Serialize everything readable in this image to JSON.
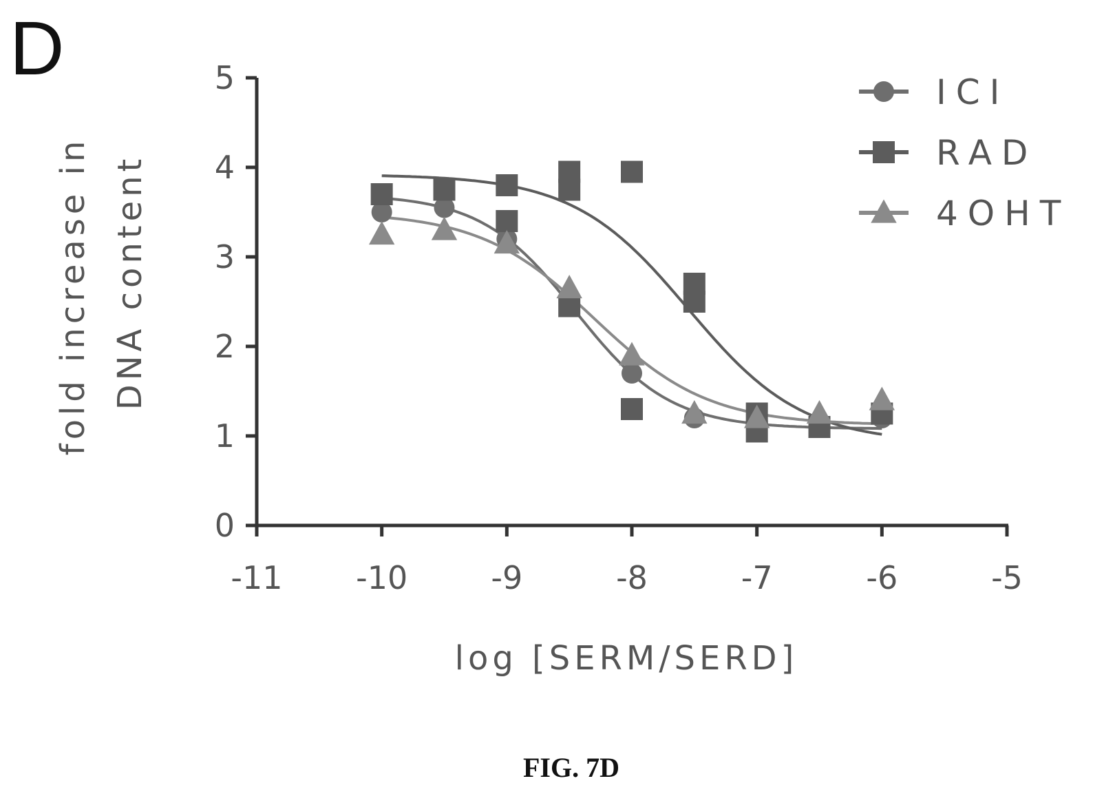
{
  "panel_label": "D",
  "caption": "FIG. 7D",
  "chart_data": {
    "type": "scatter",
    "xlabel": "log [SERM/SERD]",
    "ylabel_lines": [
      "fold increase in",
      "DNA content"
    ],
    "xlim": [
      -11,
      -5
    ],
    "ylim": [
      0,
      5
    ],
    "xticks": [
      "-11",
      "-10",
      "-9",
      "-8",
      "-7",
      "-6",
      "-5"
    ],
    "yticks": [
      "0",
      "1",
      "2",
      "3",
      "4",
      "5"
    ],
    "legend_position": "top-right",
    "series": [
      {
        "name": "ICI",
        "marker": "circle",
        "color": "#6e6e6e",
        "points": [
          [
            -10,
            3.5
          ],
          [
            -9.5,
            3.55
          ],
          [
            -9,
            3.2
          ],
          [
            -8.5,
            2.5
          ],
          [
            -8,
            1.7
          ],
          [
            -7.5,
            1.2
          ],
          [
            -7,
            1.1
          ],
          [
            -6.5,
            1.15
          ],
          [
            -6,
            1.2
          ]
        ],
        "fit": {
          "top": 3.7,
          "bottom": 1.08,
          "logEC50": -8.45,
          "hill": 1.15
        }
      },
      {
        "name": "RAD",
        "marker": "square",
        "color": "#5c5c5c",
        "points": [
          [
            -10,
            3.7
          ],
          [
            -9.5,
            3.75
          ],
          [
            -9,
            3.8
          ],
          [
            -9,
            3.4
          ],
          [
            -8.5,
            3.95
          ],
          [
            -8.5,
            3.75
          ],
          [
            -8.5,
            2.45
          ],
          [
            -8,
            3.95
          ],
          [
            -8,
            1.3
          ],
          [
            -7.5,
            2.7
          ],
          [
            -7.5,
            2.5
          ],
          [
            -7,
            1.25
          ],
          [
            -7,
            1.05
          ],
          [
            -6.5,
            1.1
          ],
          [
            -6,
            1.25
          ]
        ],
        "fit": {
          "top": 3.92,
          "bottom": 0.92,
          "logEC50": -7.55,
          "hill": 0.95
        }
      },
      {
        "name": "4OHT",
        "marker": "triangle",
        "color": "#8a8a8a",
        "points": [
          [
            -10,
            3.25
          ],
          [
            -9.5,
            3.3
          ],
          [
            -9,
            3.15
          ],
          [
            -8.5,
            2.65
          ],
          [
            -8,
            1.9
          ],
          [
            -7.5,
            1.25
          ],
          [
            -7,
            1.2
          ],
          [
            -6.5,
            1.25
          ],
          [
            -6,
            1.4
          ]
        ],
        "fit": {
          "top": 3.5,
          "bottom": 1.12,
          "logEC50": -8.3,
          "hill": 0.95
        }
      }
    ]
  }
}
